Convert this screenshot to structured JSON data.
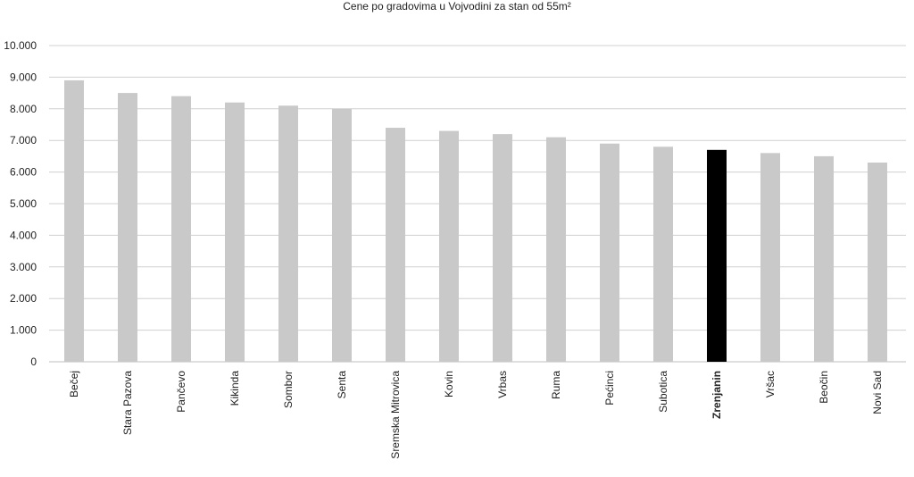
{
  "chart_data": {
    "type": "bar",
    "title": "Cene po gradovima u Vojvodini za stan od 55m²",
    "xlabel": "",
    "ylabel": "",
    "ylim": [
      0,
      10000
    ],
    "yticks": [
      "0",
      "1.000",
      "2.000",
      "3.000",
      "4.000",
      "5.000",
      "6.000",
      "7.000",
      "8.000",
      "9.000",
      "10.000"
    ],
    "ytick_values": [
      0,
      1000,
      2000,
      3000,
      4000,
      5000,
      6000,
      7000,
      8000,
      9000,
      10000
    ],
    "grid": true,
    "legend": "none",
    "categories": [
      "Bečej",
      "Stara Pazova",
      "Pančevo",
      "Kikinda",
      "Sombor",
      "Senta",
      "Sremska Mitrovica",
      "Kovin",
      "Vrbas",
      "Ruma",
      "Pećinci",
      "Subotica",
      "Zrenjanin",
      "Vršac",
      "Beočin",
      "Novi Sad"
    ],
    "values": [
      8900,
      8500,
      8400,
      8200,
      8100,
      8000,
      7400,
      7300,
      7200,
      7100,
      6900,
      6800,
      6700,
      6600,
      6500,
      6300
    ],
    "highlight": "Zrenjanin",
    "colors": {
      "bar": "#c9c9c9",
      "highlight": "#000000",
      "grid": "#d0d0d0",
      "axis": "#bfbfbf"
    }
  }
}
